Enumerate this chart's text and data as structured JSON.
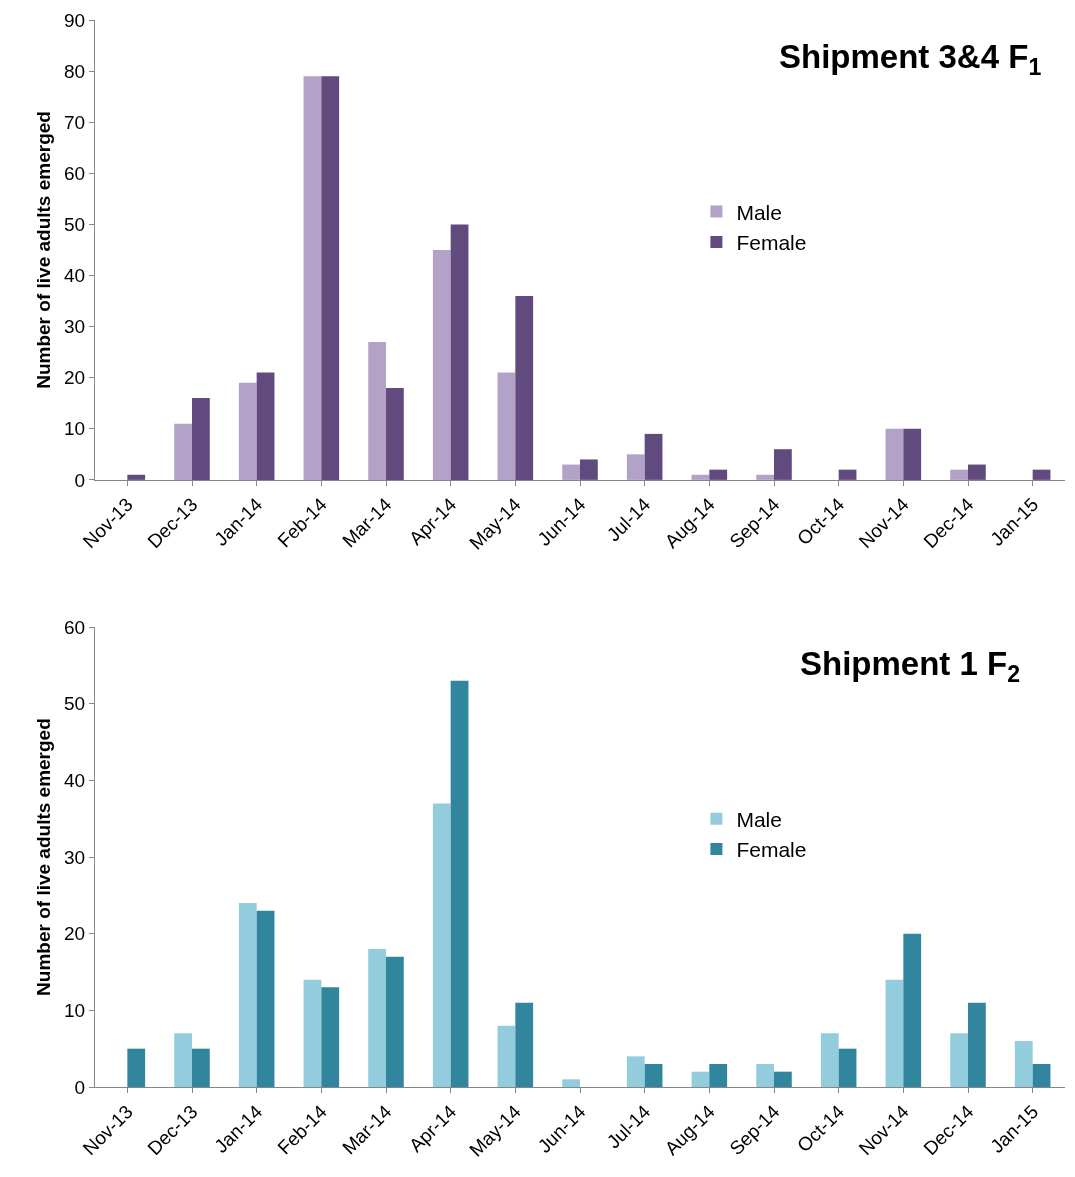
{
  "chart_data": [
    {
      "type": "bar",
      "title": "Shipment 3&4 F$_{1}$",
      "ylabel": "Number of live adults emerged",
      "categories": [
        "Nov-13",
        "Dec-13",
        "Jan-14",
        "Feb-14",
        "Mar-14",
        "Apr-14",
        "May-14",
        "Jun-14",
        "Jul-14",
        "Aug-14",
        "Sep-14",
        "Oct-14",
        "Nov-14",
        "Dec-14",
        "Jan-15"
      ],
      "series": [
        {
          "name": "Male",
          "color": "#b3a2c8",
          "values": [
            0,
            11,
            19,
            79,
            27,
            45,
            21,
            3,
            5,
            1,
            1,
            0,
            10,
            2,
            0
          ]
        },
        {
          "name": "Female",
          "color": "#614a7d",
          "values": [
            1,
            16,
            21,
            79,
            18,
            50,
            36,
            4,
            9,
            2,
            6,
            2,
            10,
            3,
            2
          ]
        }
      ],
      "ylim": [
        0,
        90
      ],
      "yticks": [
        0,
        10,
        20,
        30,
        40,
        50,
        60,
        70,
        80,
        90
      ],
      "legend": "right"
    },
    {
      "type": "bar",
      "title": "Shipment 1 F$_{2}$",
      "ylabel": "Number of live adults emerged",
      "categories": [
        "Nov-13",
        "Dec-13",
        "Jan-14",
        "Feb-14",
        "Mar-14",
        "Apr-14",
        "May-14",
        "Jun-14",
        "Jul-14",
        "Aug-14",
        "Sep-14",
        "Oct-14",
        "Nov-14",
        "Dec-14",
        "Jan-15"
      ],
      "series": [
        {
          "name": "Male",
          "color": "#93cddd",
          "values": [
            0,
            7,
            24,
            14,
            18,
            37,
            8,
            1,
            4,
            2,
            3,
            7,
            14,
            7,
            6
          ]
        },
        {
          "name": "Female",
          "color": "#31859c",
          "values": [
            5,
            5,
            23,
            13,
            17,
            53,
            11,
            0,
            3,
            3,
            2,
            5,
            20,
            11,
            3
          ]
        }
      ],
      "ylim": [
        0,
        60
      ],
      "yticks": [
        0,
        10,
        20,
        30,
        40,
        50,
        60
      ],
      "legend": "right"
    }
  ]
}
